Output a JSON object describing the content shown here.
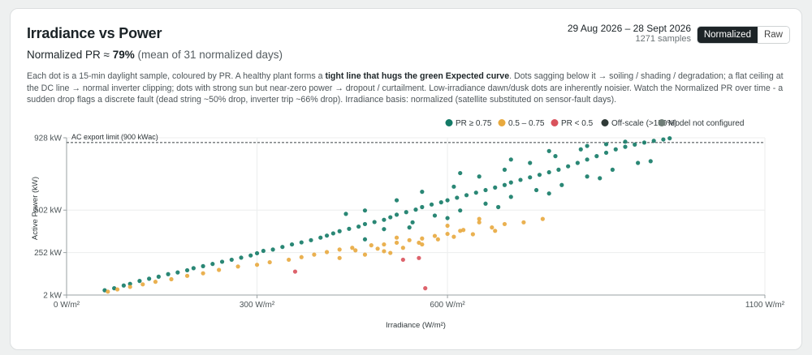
{
  "header": {
    "title": "Irradiance vs Power",
    "pr_prefix": "Normalized PR ≈ ",
    "pr_value": "79%",
    "pr_note": " (mean of 31 normalized days)",
    "date_range": "29 Aug 2026 – 28 Sept 2026",
    "samples": "1271 samples"
  },
  "toggle": {
    "normalized": "Normalized",
    "raw": "Raw",
    "active": "Normalized"
  },
  "description": {
    "part1": "Each dot is a 15-min daylight sample, coloured by PR. A healthy plant forms a ",
    "bold": "tight line that hugs the green Expected curve",
    "part2": ". Dots sagging below it → soiling / shading / degradation; a flat ceiling at the DC line → normal inverter clipping; dots with strong sun but near-zero power → dropout / curtailment. Low-irradiance dawn/dusk dots are inherently noisier. Watch the Normalized PR over time - a sudden drop flags a discrete fault (dead string ~50% drop, inverter trip ~66% drop). Irradiance basis: normalized (satellite substituted on sensor-fault days)."
  },
  "chart_data": {
    "type": "scatter",
    "xlabel": "Irradiance (W/m²)",
    "ylabel": "Active Power (kW)",
    "xlim": [
      0,
      1100
    ],
    "ylim": [
      2,
      928
    ],
    "x_ticks": [
      {
        "value": 0,
        "label": "0 W/m²"
      },
      {
        "value": 300,
        "label": "300 W/m²"
      },
      {
        "value": 600,
        "label": "600 W/m²"
      },
      {
        "value": 1100,
        "label": "1100 W/m²"
      }
    ],
    "y_ticks": [
      {
        "value": 2,
        "label": "2 kW"
      },
      {
        "value": 252,
        "label": "252 kW"
      },
      {
        "value": 502,
        "label": "502 kW"
      },
      {
        "value": 928,
        "label": "928 kW"
      }
    ],
    "grid": true,
    "legend_position": "top-right",
    "ac_limit": {
      "value": 900,
      "label": "AC export limit (900 kWac)"
    },
    "legend": [
      {
        "label": "PR ≥ 0.75",
        "color": "#137a66"
      },
      {
        "label": "0.5 – 0.75",
        "color": "#e8a93e"
      },
      {
        "label": "PR < 0.5",
        "color": "#d9525c"
      },
      {
        "label": "Off-scale (>150%)",
        "color": "#2f3a37"
      },
      {
        "label": "Model not configured",
        "color": "#6f7d77"
      }
    ],
    "series": [
      {
        "name": "PR ≥ 0.75",
        "color": "#137a66",
        "points": [
          [
            60,
            30
          ],
          [
            75,
            42
          ],
          [
            90,
            58
          ],
          [
            100,
            68
          ],
          [
            115,
            85
          ],
          [
            130,
            98
          ],
          [
            145,
            110
          ],
          [
            160,
            125
          ],
          [
            175,
            135
          ],
          [
            190,
            148
          ],
          [
            200,
            160
          ],
          [
            215,
            172
          ],
          [
            230,
            185
          ],
          [
            245,
            198
          ],
          [
            260,
            210
          ],
          [
            275,
            222
          ],
          [
            290,
            235
          ],
          [
            300,
            248
          ],
          [
            310,
            262
          ],
          [
            325,
            270
          ],
          [
            340,
            285
          ],
          [
            355,
            300
          ],
          [
            370,
            312
          ],
          [
            385,
            325
          ],
          [
            400,
            340
          ],
          [
            410,
            352
          ],
          [
            420,
            365
          ],
          [
            430,
            378
          ],
          [
            445,
            392
          ],
          [
            460,
            405
          ],
          [
            470,
            420
          ],
          [
            485,
            432
          ],
          [
            500,
            445
          ],
          [
            510,
            460
          ],
          [
            520,
            475
          ],
          [
            535,
            490
          ],
          [
            550,
            505
          ],
          [
            560,
            520
          ],
          [
            575,
            535
          ],
          [
            590,
            548
          ],
          [
            600,
            560
          ],
          [
            615,
            575
          ],
          [
            630,
            590
          ],
          [
            645,
            605
          ],
          [
            660,
            620
          ],
          [
            675,
            635
          ],
          [
            690,
            650
          ],
          [
            700,
            665
          ],
          [
            715,
            680
          ],
          [
            730,
            695
          ],
          [
            745,
            710
          ],
          [
            760,
            725
          ],
          [
            775,
            740
          ],
          [
            790,
            760
          ],
          [
            805,
            780
          ],
          [
            820,
            800
          ],
          [
            835,
            820
          ],
          [
            850,
            840
          ],
          [
            865,
            860
          ],
          [
            880,
            875
          ],
          [
            895,
            888
          ],
          [
            910,
            900
          ],
          [
            925,
            910
          ],
          [
            940,
            918
          ],
          [
            950,
            925
          ],
          [
            440,
            480
          ],
          [
            470,
            500
          ],
          [
            520,
            560
          ],
          [
            560,
            610
          ],
          [
            610,
            640
          ],
          [
            650,
            700
          ],
          [
            690,
            740
          ],
          [
            730,
            780
          ],
          [
            770,
            820
          ],
          [
            810,
            860
          ],
          [
            850,
            890
          ],
          [
            880,
            905
          ],
          [
            545,
            430
          ],
          [
            620,
            500
          ],
          [
            700,
            580
          ],
          [
            780,
            650
          ],
          [
            860,
            740
          ],
          [
            500,
            390
          ],
          [
            580,
            470
          ],
          [
            660,
            540
          ],
          [
            740,
            620
          ],
          [
            820,
            700
          ],
          [
            900,
            780
          ],
          [
            470,
            330
          ],
          [
            540,
            400
          ],
          [
            600,
            455
          ],
          [
            680,
            520
          ],
          [
            760,
            600
          ],
          [
            840,
            690
          ],
          [
            920,
            790
          ],
          [
            620,
            720
          ],
          [
            700,
            800
          ],
          [
            760,
            850
          ],
          [
            820,
            880
          ]
        ]
      },
      {
        "name": "0.5 – 0.75",
        "color": "#e8a93e",
        "points": [
          [
            65,
            22
          ],
          [
            80,
            35
          ],
          [
            100,
            50
          ],
          [
            120,
            65
          ],
          [
            140,
            80
          ],
          [
            165,
            95
          ],
          [
            190,
            115
          ],
          [
            215,
            130
          ],
          [
            240,
            150
          ],
          [
            270,
            170
          ],
          [
            300,
            180
          ],
          [
            320,
            195
          ],
          [
            350,
            210
          ],
          [
            370,
            225
          ],
          [
            390,
            240
          ],
          [
            410,
            255
          ],
          [
            430,
            270
          ],
          [
            450,
            280
          ],
          [
            480,
            295
          ],
          [
            500,
            300
          ],
          [
            520,
            310
          ],
          [
            540,
            325
          ],
          [
            560,
            335
          ],
          [
            580,
            350
          ],
          [
            600,
            362
          ],
          [
            620,
            380
          ],
          [
            640,
            360
          ],
          [
            650,
            430
          ],
          [
            670,
            400
          ],
          [
            690,
            420
          ],
          [
            720,
            430
          ],
          [
            750,
            450
          ],
          [
            470,
            240
          ],
          [
            500,
            260
          ],
          [
            530,
            280
          ],
          [
            555,
            310
          ],
          [
            585,
            330
          ],
          [
            610,
            345
          ],
          [
            520,
            340
          ],
          [
            560,
            300
          ],
          [
            600,
            410
          ],
          [
            625,
            385
          ],
          [
            650,
            450
          ],
          [
            675,
            380
          ],
          [
            430,
            220
          ],
          [
            455,
            265
          ],
          [
            490,
            275
          ],
          [
            510,
            250
          ]
        ]
      },
      {
        "name": "PR < 0.5",
        "color": "#d9525c",
        "points": [
          [
            360,
            140
          ],
          [
            530,
            210
          ],
          [
            555,
            220
          ],
          [
            565,
            42
          ]
        ]
      }
    ]
  }
}
